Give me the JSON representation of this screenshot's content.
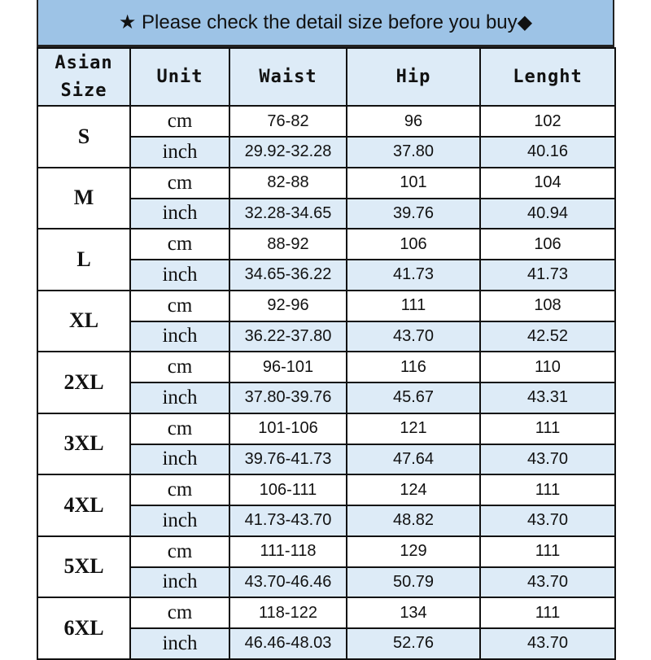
{
  "title": {
    "icon_left": "star-icon",
    "icon_right": "diamond-icon",
    "text": "★ Please check the detail size before you buy◆"
  },
  "headers": [
    "Asian Size",
    "Unit",
    "Waist",
    "Hip",
    "Lenght"
  ],
  "colors": {
    "title_bg": "#9dc3e6",
    "header_bg": "#ddebf7",
    "inch_row_bg": "#ddebf7"
  },
  "rows": [
    {
      "size": "S",
      "cm": [
        "76-82",
        "96",
        "102"
      ],
      "inch": [
        "29.92-32.28",
        "37.80",
        "40.16"
      ]
    },
    {
      "size": "M",
      "cm": [
        "82-88",
        "101",
        "104"
      ],
      "inch": [
        "32.28-34.65",
        "39.76",
        "40.94"
      ]
    },
    {
      "size": "L",
      "cm": [
        "88-92",
        "106",
        "106"
      ],
      "inch": [
        "34.65-36.22",
        "41.73",
        "41.73"
      ]
    },
    {
      "size": "XL",
      "cm": [
        "92-96",
        "111",
        "108"
      ],
      "inch": [
        "36.22-37.80",
        "43.70",
        "42.52"
      ]
    },
    {
      "size": "2XL",
      "cm": [
        "96-101",
        "116",
        "110"
      ],
      "inch": [
        "37.80-39.76",
        "45.67",
        "43.31"
      ]
    },
    {
      "size": "3XL",
      "cm": [
        "101-106",
        "121",
        "111"
      ],
      "inch": [
        "39.76-41.73",
        "47.64",
        "43.70"
      ]
    },
    {
      "size": "4XL",
      "cm": [
        "106-111",
        "124",
        "111"
      ],
      "inch": [
        "41.73-43.70",
        "48.82",
        "43.70"
      ]
    },
    {
      "size": "5XL",
      "cm": [
        "111-118",
        "129",
        "111"
      ],
      "inch": [
        "43.70-46.46",
        "50.79",
        "43.70"
      ]
    },
    {
      "size": "6XL",
      "cm": [
        "118-122",
        "134",
        "111"
      ],
      "inch": [
        "46.46-48.03",
        "52.76",
        "43.70"
      ]
    }
  ],
  "units": {
    "cm": "cm",
    "inch": "inch"
  }
}
